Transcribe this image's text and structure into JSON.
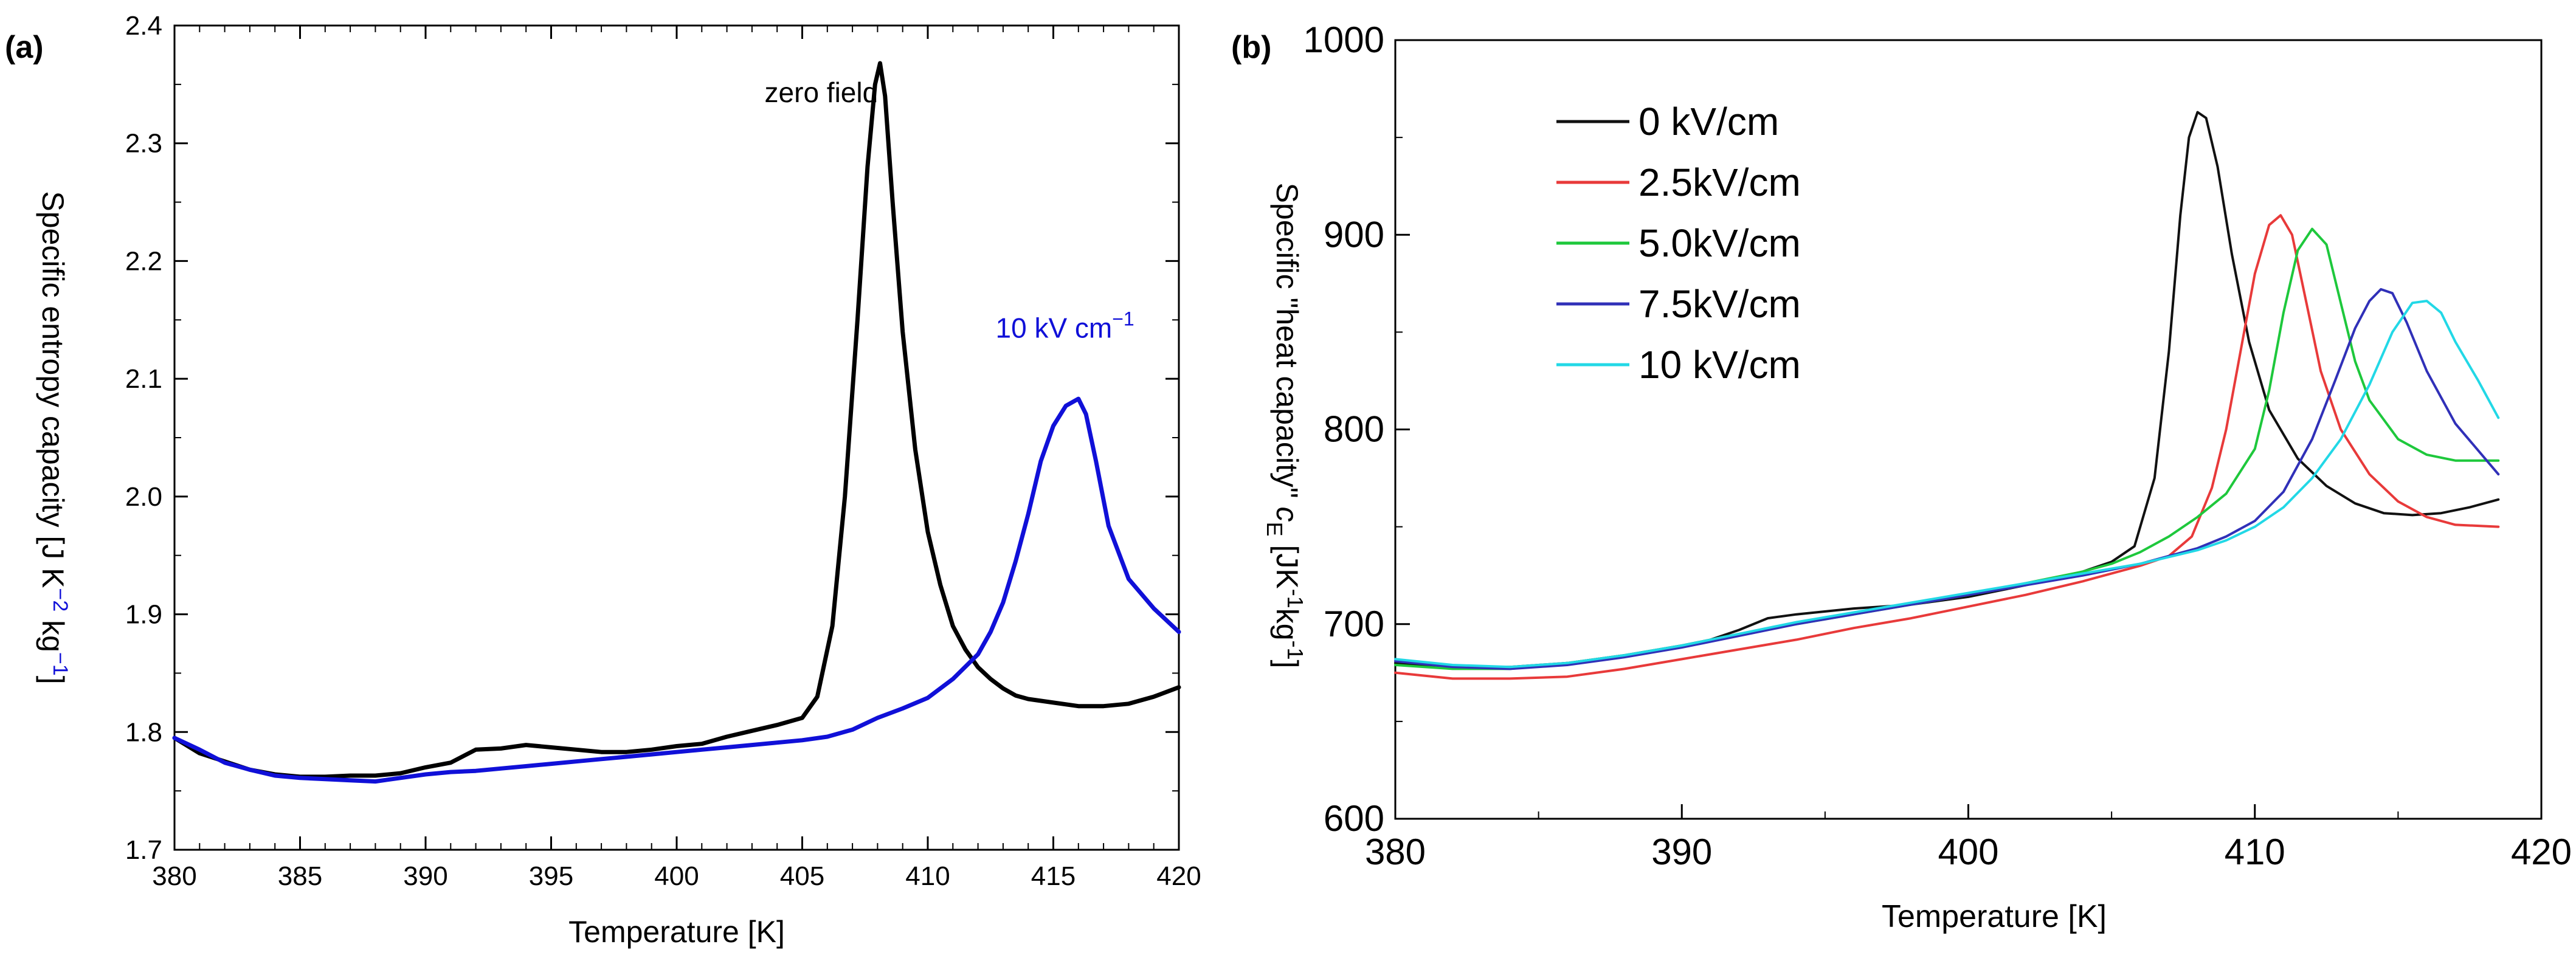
{
  "chart_data": [
    {
      "type": "line",
      "panel_label": "(a)",
      "title": "",
      "xlabel": "Temperature [K]",
      "ylabel_parts": [
        "Specific entropy capacity [J K",
        "−2",
        " kg",
        "−1",
        "]"
      ],
      "xlim": [
        380,
        420
      ],
      "ylim": [
        1.7,
        2.4
      ],
      "xticks": [
        380,
        385,
        390,
        395,
        400,
        405,
        410,
        415,
        420
      ],
      "yticks": [
        1.7,
        1.8,
        1.9,
        2.0,
        2.1,
        2.2,
        2.3,
        2.4
      ],
      "ytick_labels": [
        "1.7",
        "1.8",
        "1.9",
        "2.0",
        "2.1",
        "2.2",
        "2.3",
        "2.4"
      ],
      "grid": false,
      "annotations": [
        {
          "text": "zero field",
          "x": 403.5,
          "y": 2.335,
          "color": "#000000"
        },
        {
          "text": "10 kV cm",
          "sup": "−1",
          "x": 412.7,
          "y": 2.135,
          "color": "#1010d8"
        }
      ],
      "series": [
        {
          "name": "zero field",
          "color": "#000000",
          "x": [
            380,
            381,
            382,
            383,
            384,
            385,
            386,
            387,
            388,
            389,
            390,
            391,
            392,
            393,
            394,
            395,
            396,
            397,
            398,
            399,
            400,
            401,
            402,
            403,
            404,
            405,
            405.6,
            406.2,
            406.7,
            407.2,
            407.6,
            407.9,
            408.1,
            408.3,
            408.6,
            409,
            409.5,
            410,
            410.5,
            411,
            411.5,
            412,
            412.5,
            413,
            413.5,
            414,
            415,
            416,
            417,
            418,
            419,
            420
          ],
          "values": [
            1.795,
            1.782,
            1.775,
            1.768,
            1.764,
            1.762,
            1.762,
            1.763,
            1.763,
            1.765,
            1.77,
            1.774,
            1.785,
            1.786,
            1.789,
            1.787,
            1.785,
            1.783,
            1.783,
            1.785,
            1.788,
            1.79,
            1.796,
            1.801,
            1.806,
            1.812,
            1.83,
            1.89,
            2.0,
            2.15,
            2.28,
            2.35,
            2.368,
            2.34,
            2.25,
            2.14,
            2.04,
            1.97,
            1.925,
            1.89,
            1.87,
            1.855,
            1.845,
            1.837,
            1.831,
            1.828,
            1.825,
            1.822,
            1.822,
            1.824,
            1.83,
            1.838
          ]
        },
        {
          "name": "10 kV cm⁻¹",
          "color": "#1010d8",
          "x": [
            380,
            381,
            382,
            383,
            384,
            385,
            386,
            387,
            388,
            389,
            390,
            391,
            392,
            393,
            394,
            395,
            396,
            397,
            398,
            399,
            400,
            401,
            402,
            403,
            404,
            405,
            406,
            407,
            408,
            409,
            410,
            411,
            412,
            412.5,
            413,
            413.5,
            414,
            414.5,
            415,
            415.5,
            416,
            416.3,
            416.7,
            417.2,
            418,
            419,
            420
          ],
          "values": [
            1.795,
            1.785,
            1.774,
            1.768,
            1.763,
            1.761,
            1.76,
            1.759,
            1.758,
            1.761,
            1.764,
            1.766,
            1.767,
            1.769,
            1.771,
            1.773,
            1.775,
            1.777,
            1.779,
            1.781,
            1.783,
            1.785,
            1.787,
            1.789,
            1.791,
            1.793,
            1.796,
            1.802,
            1.812,
            1.82,
            1.829,
            1.845,
            1.866,
            1.885,
            1.91,
            1.945,
            1.985,
            2.03,
            2.06,
            2.077,
            2.083,
            2.07,
            2.03,
            1.975,
            1.93,
            1.905,
            1.885
          ]
        }
      ]
    },
    {
      "type": "line",
      "panel_label": "(b)",
      "title": "",
      "xlabel": "Temperature [K]",
      "ylabel_parts": [
        "Specific \"heat capacity\" ",
        "c",
        "E",
        " [JK",
        "-1",
        "kg",
        "-1",
        "]"
      ],
      "xlim": [
        380,
        420
      ],
      "ylim": [
        600,
        1000
      ],
      "xticks": [
        380,
        390,
        400,
        410,
        420
      ],
      "yticks": [
        600,
        700,
        800,
        900,
        1000
      ],
      "grid": false,
      "legend": "top-left",
      "series": [
        {
          "name": "0 kV/cm",
          "color": "#111111",
          "x": [
            380,
            382,
            384,
            386,
            388,
            390,
            391,
            392,
            393,
            394,
            396,
            398,
            400,
            402,
            404,
            405,
            405.8,
            406.5,
            407,
            407.4,
            407.7,
            408,
            408.3,
            408.7,
            409.2,
            409.8,
            410.5,
            411.5,
            412.5,
            413.5,
            414.5,
            415.5,
            416.5,
            417.5,
            418.5
          ],
          "values": [
            680,
            678,
            678,
            680,
            684,
            689,
            692,
            697,
            703,
            705,
            708,
            710,
            714,
            720,
            727,
            732,
            740,
            775,
            840,
            910,
            950,
            963,
            960,
            935,
            890,
            845,
            810,
            785,
            771,
            762,
            757,
            756,
            757,
            760,
            764
          ]
        },
        {
          "name": "2.5kV/cm",
          "color": "#e83a3a",
          "x": [
            380,
            382,
            384,
            386,
            388,
            390,
            392,
            394,
            396,
            398,
            400,
            402,
            404,
            406,
            407,
            407.8,
            408.5,
            409,
            409.5,
            410,
            410.5,
            410.9,
            411.3,
            411.8,
            412.3,
            413,
            414,
            415,
            416,
            417,
            418.5
          ],
          "values": [
            675,
            672,
            672,
            673,
            677,
            682,
            687,
            692,
            698,
            703,
            709,
            715,
            722,
            730,
            735,
            745,
            770,
            800,
            840,
            880,
            905,
            910,
            900,
            865,
            830,
            800,
            777,
            763,
            755,
            751,
            750
          ]
        },
        {
          "name": "5.0kV/cm",
          "color": "#1ec83c",
          "x": [
            380,
            382,
            384,
            386,
            388,
            390,
            392,
            394,
            396,
            398,
            400,
            402,
            404,
            405,
            406,
            407,
            408,
            409,
            410,
            410.5,
            411,
            411.5,
            412,
            412.5,
            413,
            413.5,
            414,
            415,
            416,
            417,
            418.5
          ],
          "values": [
            679,
            677,
            677,
            680,
            684,
            689,
            695,
            700,
            705,
            710,
            715,
            721,
            727,
            731,
            737,
            745,
            755,
            767,
            790,
            820,
            860,
            892,
            903,
            895,
            865,
            835,
            815,
            795,
            787,
            784,
            784
          ]
        },
        {
          "name": "7.5kV/cm",
          "color": "#3030b8",
          "x": [
            380,
            382,
            384,
            386,
            388,
            390,
            392,
            394,
            396,
            398,
            400,
            402,
            404,
            406,
            408,
            409,
            410,
            411,
            412,
            412.8,
            413.5,
            414,
            414.4,
            414.8,
            415.3,
            416,
            417,
            418.5
          ],
          "values": [
            681,
            678,
            677,
            679,
            683,
            688,
            694,
            700,
            705,
            710,
            715,
            720,
            725,
            731,
            739,
            745,
            753,
            768,
            795,
            825,
            852,
            866,
            872,
            870,
            855,
            830,
            803,
            777
          ]
        },
        {
          "name": "10 kV/cm",
          "color": "#22d8e6",
          "x": [
            380,
            382,
            384,
            386,
            388,
            390,
            392,
            394,
            396,
            398,
            400,
            402,
            404,
            406,
            408,
            409,
            410,
            411,
            412,
            413,
            414,
            414.8,
            415.5,
            416,
            416.5,
            417,
            417.8,
            418.5
          ],
          "values": [
            682,
            679,
            678,
            680,
            684,
            689,
            695,
            701,
            706,
            711,
            716,
            721,
            726,
            731,
            738,
            743,
            750,
            760,
            775,
            795,
            823,
            850,
            865,
            866,
            860,
            845,
            825,
            806
          ]
        }
      ]
    }
  ]
}
